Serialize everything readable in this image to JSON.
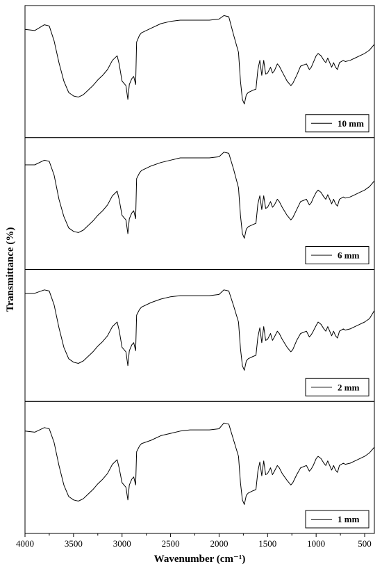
{
  "chart_data": {
    "type": "line",
    "xlabel": "Wavenumber (cm⁻¹)",
    "ylabel": "Transmittance (%)",
    "xlim": [
      4000,
      400
    ],
    "x_reversed": true,
    "x_ticks": [
      4000,
      3500,
      3000,
      2500,
      2000,
      1500,
      1000,
      500
    ],
    "y_ticks": [],
    "grid": false,
    "legend_placement": "bottom-right",
    "ylim": [
      0,
      100
    ],
    "x": [
      4000,
      3900,
      3800,
      3750,
      3700,
      3650,
      3600,
      3550,
      3500,
      3450,
      3400,
      3350,
      3300,
      3250,
      3200,
      3150,
      3100,
      3050,
      3030,
      3000,
      2980,
      2960,
      2940,
      2925,
      2900,
      2880,
      2860,
      2850,
      2820,
      2800,
      2700,
      2600,
      2500,
      2400,
      2300,
      2200,
      2100,
      2000,
      1950,
      1900,
      1850,
      1800,
      1780,
      1760,
      1740,
      1720,
      1700,
      1650,
      1620,
      1600,
      1580,
      1560,
      1540,
      1520,
      1500,
      1470,
      1450,
      1430,
      1400,
      1380,
      1350,
      1300,
      1260,
      1240,
      1200,
      1160,
      1100,
      1070,
      1050,
      1030,
      1000,
      980,
      950,
      920,
      900,
      880,
      860,
      840,
      820,
      800,
      780,
      760,
      720,
      700,
      650,
      600,
      550,
      500,
      450,
      400
    ],
    "series": [
      {
        "name": "10 mm",
        "values": [
          85,
          84,
          89,
          88,
          75,
          56,
          40,
          30,
          27,
          26,
          28,
          32,
          36,
          41,
          45,
          50,
          58,
          62,
          55,
          40,
          38,
          36,
          24,
          37,
          42,
          44,
          37,
          74,
          80,
          82,
          86,
          90,
          92,
          93,
          93,
          93,
          93,
          94,
          97,
          96,
          80,
          65,
          40,
          24,
          20,
          28,
          30,
          32,
          33,
          50,
          58,
          45,
          58,
          46,
          47,
          52,
          47,
          49,
          55,
          53,
          48,
          40,
          36,
          38,
          45,
          53,
          55,
          50,
          52,
          56,
          62,
          64,
          62,
          58,
          56,
          60,
          56,
          52,
          56,
          52,
          50,
          56,
          58,
          57,
          58,
          60,
          62,
          64,
          67,
          72
        ]
      },
      {
        "name": "6 mm",
        "values": [
          82,
          82,
          86,
          85,
          73,
          52,
          37,
          27,
          24,
          23,
          25,
          29,
          33,
          38,
          42,
          47,
          55,
          59,
          52,
          38,
          36,
          34,
          22,
          35,
          40,
          42,
          35,
          70,
          75,
          77,
          81,
          84,
          86,
          88,
          88,
          88,
          88,
          89,
          93,
          92,
          78,
          62,
          38,
          22,
          18,
          26,
          28,
          30,
          31,
          48,
          55,
          43,
          55,
          44,
          45,
          50,
          45,
          47,
          52,
          50,
          45,
          38,
          34,
          36,
          43,
          50,
          52,
          47,
          49,
          53,
          58,
          60,
          58,
          54,
          52,
          56,
          52,
          48,
          52,
          48,
          46,
          52,
          54,
          53,
          54,
          56,
          58,
          60,
          63,
          68
        ]
      },
      {
        "name": "2 mm",
        "values": [
          85,
          85,
          88,
          87,
          75,
          55,
          38,
          28,
          25,
          24,
          26,
          30,
          34,
          39,
          43,
          48,
          56,
          60,
          53,
          38,
          36,
          34,
          22,
          35,
          40,
          42,
          35,
          66,
          71,
          73,
          77,
          80,
          82,
          83,
          83,
          83,
          83,
          84,
          88,
          87,
          74,
          60,
          37,
          22,
          18,
          26,
          28,
          30,
          31,
          47,
          55,
          42,
          56,
          44,
          45,
          50,
          44,
          47,
          52,
          50,
          45,
          38,
          34,
          36,
          44,
          50,
          52,
          47,
          49,
          52,
          57,
          60,
          58,
          54,
          52,
          56,
          52,
          48,
          52,
          48,
          46,
          52,
          54,
          53,
          54,
          56,
          58,
          60,
          63,
          70
        ]
      },
      {
        "name": "1 mm",
        "values": [
          80,
          79,
          83,
          82,
          70,
          50,
          33,
          23,
          20,
          19,
          21,
          25,
          29,
          34,
          38,
          43,
          51,
          55,
          48,
          35,
          33,
          31,
          20,
          33,
          38,
          40,
          33,
          62,
          67,
          69,
          72,
          76,
          78,
          80,
          81,
          81,
          81,
          82,
          87,
          86,
          72,
          58,
          35,
          20,
          16,
          24,
          26,
          28,
          29,
          45,
          53,
          41,
          54,
          42,
          43,
          48,
          42,
          45,
          50,
          48,
          43,
          37,
          33,
          35,
          42,
          48,
          50,
          45,
          47,
          50,
          56,
          58,
          56,
          52,
          50,
          54,
          50,
          46,
          50,
          46,
          44,
          50,
          52,
          51,
          52,
          54,
          56,
          58,
          61,
          66
        ]
      }
    ]
  }
}
